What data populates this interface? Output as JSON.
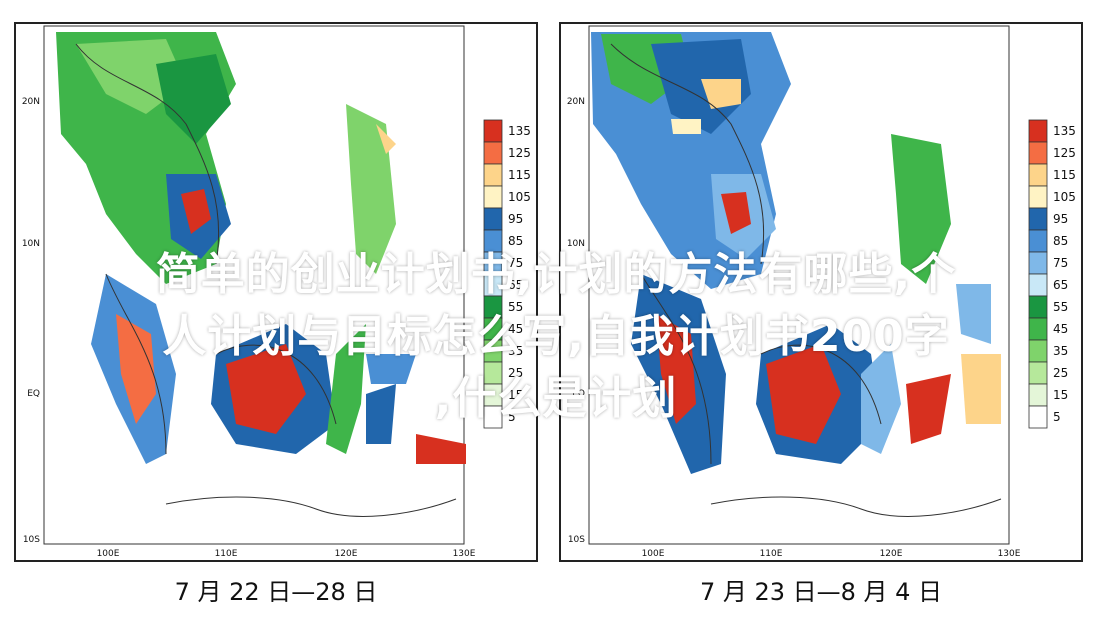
{
  "maps": [
    {
      "caption": "7 月 22 日—28 日",
      "lat_labels": [
        "20N",
        "10N",
        "EQ",
        "10S"
      ],
      "lon_labels": [
        "100E",
        "110E",
        "120E",
        "130E"
      ],
      "legend": [
        "135",
        "125",
        "115",
        "105",
        "95",
        "85",
        "75",
        "65",
        "55",
        "45",
        "35",
        "25",
        "15",
        "5"
      ]
    },
    {
      "caption": "7 月 23 日—8 月 4 日",
      "lat_labels": [
        "20N",
        "10N",
        "EQ",
        "10S"
      ],
      "lon_labels": [
        "100E",
        "110E",
        "120E",
        "130E"
      ],
      "legend": [
        "135",
        "125",
        "115",
        "105",
        "95",
        "85",
        "75",
        "65",
        "55",
        "45",
        "35",
        "25",
        "15",
        "5"
      ]
    }
  ],
  "legend_colors": [
    "#d7301f",
    "#f46d43",
    "#fdd48a",
    "#fff3c4",
    "#2166ac",
    "#4a8fd4",
    "#7fb8e8",
    "#c9e8f7",
    "#1a9641",
    "#3fb54a",
    "#7fd36b",
    "#b6e89b",
    "#e4f6d8",
    "#ffffff"
  ],
  "overlay": {
    "line1": "简单的创业计划书,计划的方法有哪些,个",
    "line2": "人计划与目标怎么写,自我计划书200字",
    "line3": ",什么是计划"
  }
}
